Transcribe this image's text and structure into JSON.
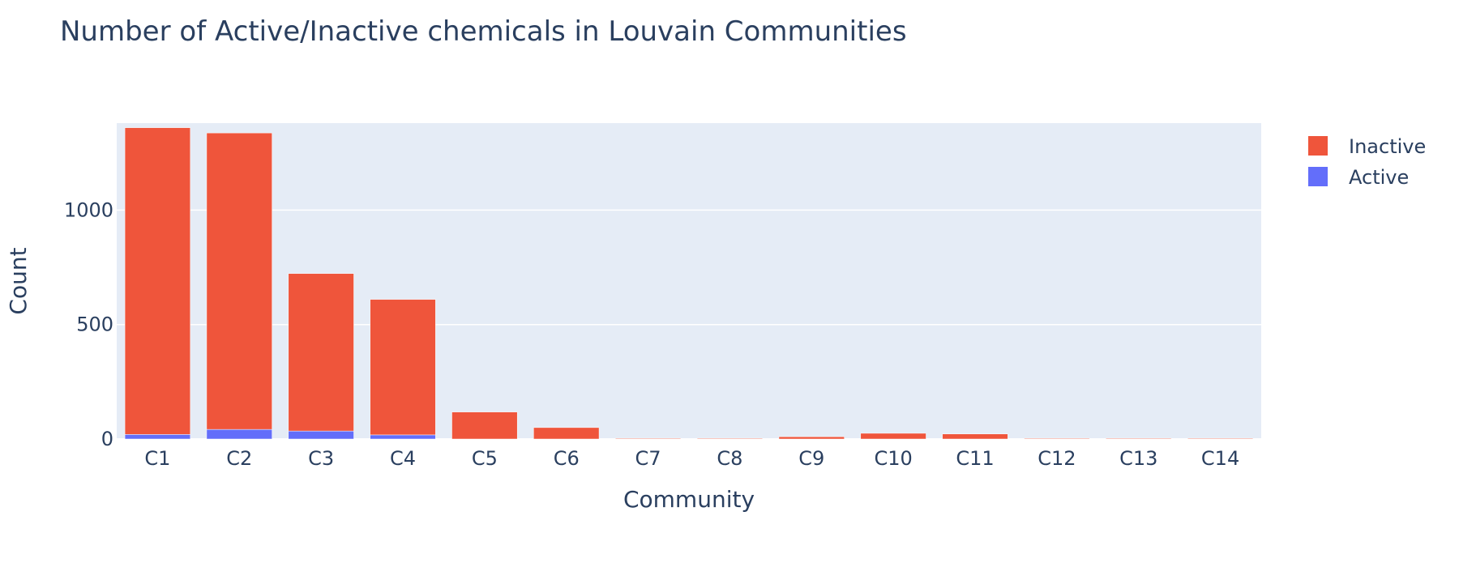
{
  "chart_data": {
    "type": "bar",
    "barmode": "stack",
    "title": "Number of Active/Inactive chemicals in Louvain Communities",
    "xlabel": "Community",
    "ylabel": "Count",
    "categories": [
      "C1",
      "C2",
      "C3",
      "C4",
      "C5",
      "C6",
      "C7",
      "C8",
      "C9",
      "C10",
      "C11",
      "C12",
      "C13",
      "C14"
    ],
    "ylim": [
      0,
      1380
    ],
    "yticks": [
      0,
      500,
      1000
    ],
    "grid": true,
    "legend_position": "top-right",
    "series": [
      {
        "name": "Active",
        "color": "#636efa",
        "values": [
          20,
          42,
          35,
          18,
          0,
          0,
          0,
          0,
          0,
          0,
          0,
          0,
          0,
          0
        ]
      },
      {
        "name": "Inactive",
        "color": "#ef553b",
        "values": [
          1340,
          1295,
          688,
          592,
          118,
          50,
          3,
          3,
          10,
          25,
          22,
          3,
          3,
          3
        ]
      }
    ],
    "legend_order": [
      "Inactive",
      "Active"
    ]
  }
}
